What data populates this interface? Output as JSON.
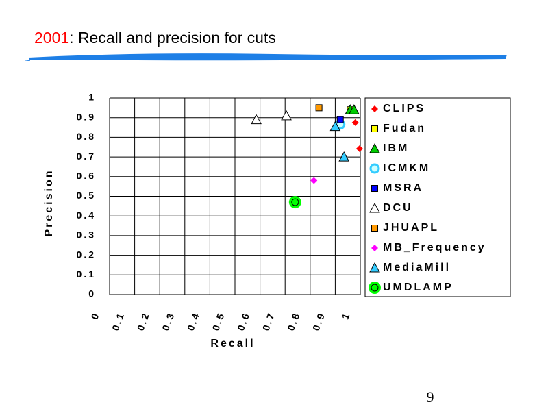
{
  "slide": {
    "title_highlight": "2001",
    "title_rest": ": Recall and precision for cuts",
    "page_number": "9"
  },
  "chart_data": {
    "type": "scatter",
    "xlabel": "Recall",
    "ylabel": "Precision",
    "xlim": [
      0,
      1
    ],
    "xticks": [
      0,
      0.1,
      0.2,
      0.3,
      0.4,
      0.5,
      0.6,
      0.7,
      0.8,
      0.9,
      1
    ],
    "ylim": [
      0,
      1
    ],
    "yticks": [
      0,
      0.1,
      0.2,
      0.3,
      0.4,
      0.5,
      0.6,
      0.7,
      0.8,
      0.9,
      1
    ],
    "grid": true,
    "legend": "right",
    "series": [
      {
        "name": "CLIPS",
        "color": "#ff0000",
        "marker": "diamond",
        "x": [
          0.997,
          0.98
        ],
        "values": [
          0.742,
          0.875
        ]
      },
      {
        "name": "Fudan",
        "color": "#ffff00",
        "marker": "square",
        "x": [
          0.96
        ],
        "values": [
          0.94
        ]
      },
      {
        "name": "IBM",
        "color": "#00cc00",
        "marker": "triangle",
        "x": [
          0.96,
          0.975
        ],
        "values": [
          0.94,
          0.94
        ]
      },
      {
        "name": "ICMKM",
        "color": "#33ccff",
        "marker": "circle",
        "x": [
          0.92
        ],
        "values": [
          0.865
        ]
      },
      {
        "name": "MSRA",
        "color": "#0000ff",
        "marker": "square",
        "x": [
          0.92
        ],
        "values": [
          0.89
        ]
      },
      {
        "name": "DCU",
        "color": "#ffffff",
        "marker": "triangle",
        "x": [
          0.585,
          0.705
        ],
        "values": [
          0.89,
          0.91
        ]
      },
      {
        "name": "JHUAPL",
        "color": "#ff9900",
        "marker": "square",
        "x": [
          0.835
        ],
        "values": [
          0.95
        ]
      },
      {
        "name": "MB_Frequency",
        "color": "#ff00ff",
        "marker": "diamond",
        "x": [
          0.815
        ],
        "values": [
          0.58
        ]
      },
      {
        "name": "MediaMill",
        "color": "#33ccff",
        "marker": "triangle",
        "x": [
          0.9,
          0.935
        ],
        "values": [
          0.855,
          0.7
        ]
      },
      {
        "name": "UMDLAMP",
        "color": "#00ff00",
        "marker": "bigcircle",
        "x": [
          0.74
        ],
        "values": [
          0.47
        ]
      }
    ]
  }
}
